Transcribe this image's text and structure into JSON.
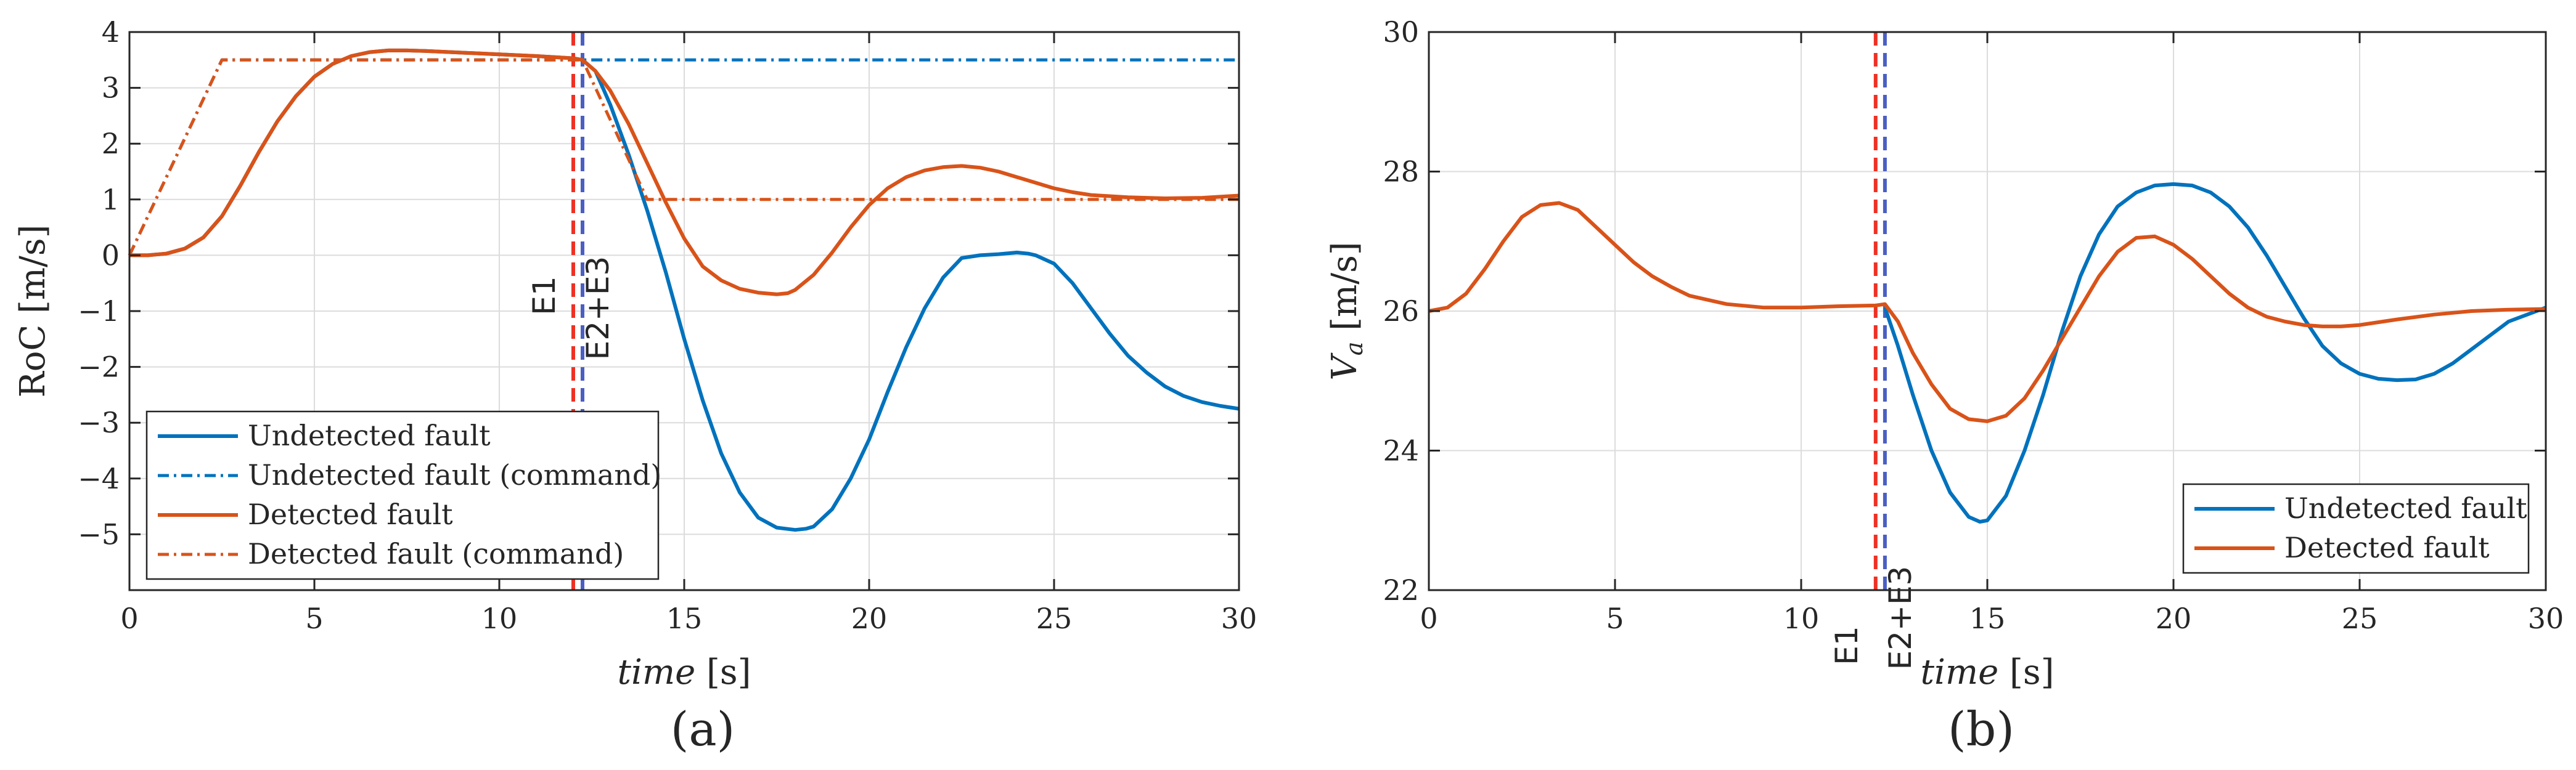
{
  "colors": {
    "undetected": "#0072BD",
    "detected": "#D95319",
    "e1_line": "#EE3124",
    "e23_line": "#4A5FC1",
    "grid": "#DCDCDC",
    "axis": "#262626"
  },
  "charts": [
    {
      "panel_label": "(a)",
      "xlabel_italic": "time",
      "xlabel_unit": " [s]",
      "ylabel": "RoC [m/s]",
      "xlim": [
        0,
        30
      ],
      "ylim": [
        -6,
        4
      ],
      "xticks": [
        "0",
        "5",
        "10",
        "15",
        "20",
        "25",
        "30"
      ],
      "yticks": [
        "4",
        "3",
        "2",
        "1",
        "0",
        "−1",
        "−2",
        "−3",
        "−4",
        "−5"
      ],
      "grid": true,
      "legend_position": "bottom-left",
      "legend": [
        "Undetected fault",
        "Undetected fault (command)",
        "Detected fault",
        "Detected fault (command)"
      ],
      "events": [
        {
          "label": "E1",
          "x": 12.0
        },
        {
          "label": "E2+E3",
          "x": 12.25
        }
      ]
    },
    {
      "panel_label": "(b)",
      "xlabel_italic": "time",
      "xlabel_unit": " [s]",
      "ylabel_main": "V",
      "ylabel_sub": "a",
      "ylabel_unit": " [m/s]",
      "xlim": [
        0,
        30
      ],
      "ylim": [
        22,
        30
      ],
      "xticks": [
        "0",
        "5",
        "10",
        "15",
        "20",
        "25",
        "30"
      ],
      "yticks": [
        "30",
        "28",
        "26",
        "24",
        "22"
      ],
      "grid": true,
      "legend_position": "bottom-right",
      "legend": [
        "Undetected fault",
        "Detected fault"
      ],
      "events": [
        {
          "label": "E1",
          "x": 12.0
        },
        {
          "label": "E2+E3",
          "x": 12.25
        }
      ]
    }
  ],
  "chart_data": [
    {
      "type": "line",
      "ylabel": "RoC [m/s]",
      "xlabel": "time [s]",
      "xlim": [
        0,
        30
      ],
      "ylim": [
        -6,
        4
      ],
      "series": [
        {
          "name": "Undetected fault",
          "style": "solid",
          "x": [
            0,
            0.5,
            1,
            1.5,
            2,
            2.5,
            3,
            3.5,
            4,
            4.5,
            5,
            5.5,
            6,
            6.5,
            7,
            7.5,
            8,
            9,
            10,
            11,
            12,
            12.25,
            12.6,
            13,
            13.5,
            14,
            14.5,
            15,
            15.5,
            16,
            16.5,
            17,
            17.5,
            18,
            18.3,
            18.5,
            19,
            19.5,
            20,
            20.5,
            21,
            21.5,
            22,
            22.5,
            23,
            23.5,
            24,
            24.3,
            24.5,
            25,
            25.5,
            26,
            26.5,
            27,
            27.5,
            28,
            28.5,
            29,
            29.5,
            30
          ],
          "y": [
            0,
            0,
            0.03,
            0.12,
            0.32,
            0.7,
            1.25,
            1.85,
            2.4,
            2.85,
            3.2,
            3.43,
            3.57,
            3.64,
            3.67,
            3.67,
            3.66,
            3.63,
            3.6,
            3.57,
            3.53,
            3.5,
            3.3,
            2.7,
            1.8,
            0.8,
            -0.3,
            -1.5,
            -2.6,
            -3.55,
            -4.25,
            -4.7,
            -4.88,
            -4.92,
            -4.9,
            -4.86,
            -4.55,
            -4.0,
            -3.3,
            -2.45,
            -1.65,
            -0.95,
            -0.4,
            -0.05,
            0.0,
            0.02,
            0.05,
            0.03,
            0.0,
            -0.15,
            -0.5,
            -0.95,
            -1.4,
            -1.8,
            -2.1,
            -2.35,
            -2.52,
            -2.63,
            -2.7,
            -2.75
          ]
        },
        {
          "name": "Undetected fault (command)",
          "style": "dashdot",
          "x": [
            0,
            2.5,
            30
          ],
          "y": [
            0,
            3.5,
            3.5
          ]
        },
        {
          "name": "Detected fault",
          "style": "solid",
          "x": [
            0,
            0.5,
            1,
            1.5,
            2,
            2.5,
            3,
            3.5,
            4,
            4.5,
            5,
            5.5,
            6,
            6.5,
            7,
            7.5,
            8,
            9,
            10,
            11,
            12,
            12.25,
            12.6,
            13,
            13.5,
            14,
            14.5,
            15,
            15.5,
            16,
            16.5,
            17,
            17.5,
            17.8,
            18,
            18.5,
            19,
            19.5,
            20,
            20.5,
            21,
            21.5,
            22,
            22.5,
            23,
            23.5,
            24,
            24.5,
            25,
            25.5,
            26,
            27,
            28,
            29,
            30
          ],
          "y": [
            0,
            0,
            0.03,
            0.12,
            0.32,
            0.7,
            1.25,
            1.85,
            2.4,
            2.85,
            3.2,
            3.43,
            3.57,
            3.64,
            3.67,
            3.67,
            3.66,
            3.63,
            3.6,
            3.57,
            3.53,
            3.5,
            3.3,
            2.95,
            2.35,
            1.65,
            0.95,
            0.3,
            -0.2,
            -0.45,
            -0.6,
            -0.67,
            -0.7,
            -0.68,
            -0.62,
            -0.35,
            0.05,
            0.5,
            0.9,
            1.2,
            1.4,
            1.52,
            1.58,
            1.6,
            1.57,
            1.5,
            1.4,
            1.3,
            1.2,
            1.13,
            1.08,
            1.04,
            1.02,
            1.03,
            1.07
          ]
        },
        {
          "name": "Detected fault (command)",
          "style": "dashdot",
          "x": [
            0,
            2.5,
            12.25,
            14,
            30
          ],
          "y": [
            0,
            3.5,
            3.5,
            1.0,
            1.0
          ]
        }
      ],
      "vlines": [
        {
          "label": "E1",
          "x": 12.0
        },
        {
          "label": "E2+E3",
          "x": 12.25
        }
      ]
    },
    {
      "type": "line",
      "ylabel": "Va [m/s]",
      "xlabel": "time [s]",
      "xlim": [
        0,
        30
      ],
      "ylim": [
        22,
        30
      ],
      "series": [
        {
          "name": "Undetected fault",
          "style": "solid",
          "x": [
            12.25,
            12.6,
            13,
            13.5,
            14,
            14.5,
            14.8,
            15,
            15.5,
            16,
            16.5,
            17,
            17.5,
            18,
            18.5,
            19,
            19.5,
            20,
            20.5,
            21,
            21.5,
            22,
            22.5,
            23,
            23.5,
            24,
            24.5,
            25,
            25.5,
            26,
            26.5,
            27,
            27.5,
            28,
            28.5,
            29,
            29.5,
            30
          ],
          "y": [
            26.05,
            25.5,
            24.8,
            24.0,
            23.4,
            23.05,
            22.98,
            23.0,
            23.35,
            24.0,
            24.8,
            25.7,
            26.5,
            27.1,
            27.5,
            27.7,
            27.8,
            27.82,
            27.8,
            27.7,
            27.5,
            27.2,
            26.8,
            26.35,
            25.9,
            25.5,
            25.25,
            25.1,
            25.03,
            25.01,
            25.02,
            25.1,
            25.25,
            25.45,
            25.65,
            25.85,
            25.95,
            26.05
          ]
        },
        {
          "name": "Detected fault",
          "style": "solid",
          "x": [
            0,
            0.5,
            1,
            1.5,
            2,
            2.5,
            3,
            3.5,
            4,
            4.5,
            5,
            5.5,
            6,
            6.5,
            7,
            8,
            9,
            10,
            11,
            12,
            12.25,
            12.6,
            13,
            13.5,
            14,
            14.5,
            15,
            15.5,
            16,
            16.5,
            17,
            17.5,
            18,
            18.5,
            19,
            19.5,
            20,
            20.5,
            21,
            21.5,
            22,
            22.5,
            23,
            23.5,
            24,
            24.5,
            25,
            25.5,
            26,
            27,
            28,
            29,
            30
          ],
          "y": [
            26.0,
            26.05,
            26.25,
            26.6,
            27.0,
            27.35,
            27.52,
            27.55,
            27.45,
            27.2,
            26.95,
            26.7,
            26.5,
            26.35,
            26.22,
            26.1,
            26.05,
            26.05,
            26.07,
            26.08,
            26.1,
            25.85,
            25.4,
            24.95,
            24.6,
            24.45,
            24.42,
            24.5,
            24.75,
            25.15,
            25.6,
            26.05,
            26.5,
            26.85,
            27.05,
            27.07,
            26.95,
            26.75,
            26.5,
            26.25,
            26.05,
            25.92,
            25.85,
            25.8,
            25.78,
            25.78,
            25.8,
            25.84,
            25.88,
            25.95,
            26.0,
            26.02,
            26.03
          ]
        }
      ],
      "vlines": [
        {
          "label": "E1",
          "x": 12.0
        },
        {
          "label": "E2+E3",
          "x": 12.25
        }
      ]
    }
  ]
}
